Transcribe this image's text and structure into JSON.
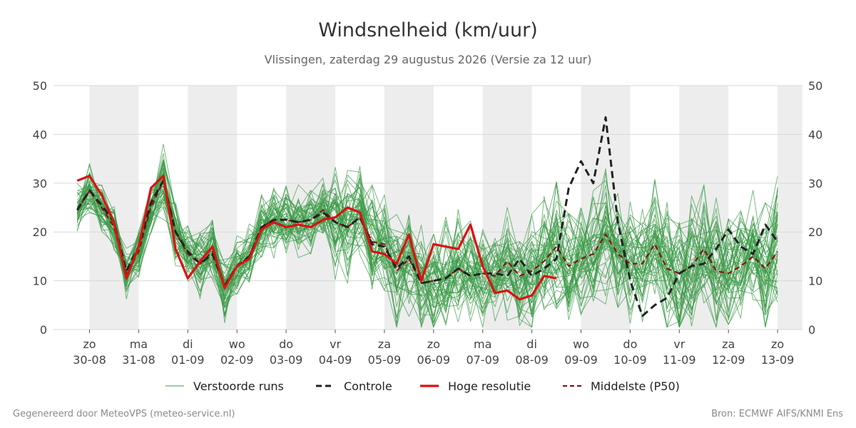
{
  "chart_data": {
    "type": "line",
    "title": "Windsnelheid (km/uur)",
    "subtitle": "Vlissingen, zaterdag 29 augustus 2026 (Versie za 12 uur)",
    "ylim": [
      0,
      50
    ],
    "yticks": [
      0,
      10,
      20,
      30,
      40,
      50
    ],
    "xlim": [
      -0.25,
      14.0
    ],
    "grid": true,
    "legend_position": "bottom",
    "weekend_shading": true,
    "x_ticks": [
      {
        "x": 0,
        "day": "zo",
        "date": "30-08"
      },
      {
        "x": 1,
        "day": "ma",
        "date": "31-08"
      },
      {
        "x": 2,
        "day": "di",
        "date": "01-09"
      },
      {
        "x": 3,
        "day": "wo",
        "date": "02-09"
      },
      {
        "x": 4,
        "day": "do",
        "date": "03-09"
      },
      {
        "x": 5,
        "day": "vr",
        "date": "04-09"
      },
      {
        "x": 6,
        "day": "za",
        "date": "05-09"
      },
      {
        "x": 7,
        "day": "zo",
        "date": "06-09"
      },
      {
        "x": 8,
        "day": "ma",
        "date": "07-09"
      },
      {
        "x": 9,
        "day": "di",
        "date": "08-09"
      },
      {
        "x": 10,
        "day": "wo",
        "date": "09-09"
      },
      {
        "x": 11,
        "day": "do",
        "date": "10-09"
      },
      {
        "x": 12,
        "day": "vr",
        "date": "11-09"
      },
      {
        "x": 13,
        "day": "za",
        "date": "12-09"
      },
      {
        "x": 14,
        "day": "zo",
        "date": "13-09"
      }
    ],
    "shaded_bands": [
      [
        0,
        1
      ],
      [
        2,
        3
      ],
      [
        4,
        5
      ],
      [
        6,
        7
      ],
      [
        8,
        9
      ],
      [
        10,
        11
      ],
      [
        12,
        13
      ],
      [
        14,
        14.5
      ]
    ],
    "series": [
      {
        "name": "Verstoorde runs",
        "color": "#3a9a45",
        "style": "thin",
        "values_note": "ensemble of 50 perturbed members, spread around the median"
      },
      {
        "name": "Controle",
        "color": "#222222",
        "style": "dashed",
        "x": [
          -0.25,
          0,
          0.25,
          0.5,
          0.75,
          1,
          1.25,
          1.5,
          1.75,
          2,
          2.25,
          2.5,
          2.75,
          3,
          3.25,
          3.5,
          3.75,
          4,
          4.25,
          4.5,
          4.75,
          5,
          5.25,
          5.5,
          5.75,
          6,
          6.25,
          6.5,
          6.75,
          7,
          7.25,
          7.5,
          7.75,
          8,
          8.25,
          8.5,
          8.75,
          9,
          9.25,
          9.5,
          9.75,
          10,
          10.25,
          10.5,
          10.75,
          11,
          11.25,
          11.5,
          11.75,
          12,
          12.25,
          12.5,
          12.75,
          13,
          13.25,
          13.5,
          13.75,
          14
        ],
        "values": [
          24.5,
          28.5,
          25.5,
          22,
          12,
          17,
          26,
          30.5,
          20,
          16,
          13.5,
          15.5,
          9,
          13,
          15,
          21,
          22.5,
          22.5,
          22,
          22.5,
          24,
          22,
          21,
          23,
          17.5,
          17,
          12.5,
          15,
          9.5,
          10,
          10.5,
          12.5,
          11,
          11.5,
          11.5,
          11,
          14.5,
          11,
          12.5,
          14.5,
          29,
          34.5,
          30,
          43.5,
          22,
          10,
          2.8,
          5,
          6.5,
          11.5,
          13,
          13.5,
          16.5,
          20.5,
          17,
          15.5,
          21.5,
          18
        ]
      },
      {
        "name": "Hoge resolutie",
        "color": "#dd1111",
        "style": "thick",
        "x": [
          -0.25,
          0,
          0.25,
          0.5,
          0.75,
          1,
          1.25,
          1.5,
          1.75,
          2,
          2.25,
          2.5,
          2.75,
          3,
          3.25,
          3.5,
          3.75,
          4,
          4.25,
          4.5,
          4.75,
          5,
          5.25,
          5.5,
          5.75,
          6,
          6.25,
          6.5,
          6.75,
          7,
          7.25,
          7.5,
          7.75,
          8,
          8.25,
          8.5,
          8.75,
          9,
          9.25,
          9.5
        ],
        "values": [
          30.5,
          31.5,
          27.5,
          22,
          10.5,
          17,
          29,
          31.5,
          16.5,
          10.5,
          14,
          17,
          8.5,
          13,
          14.5,
          20.5,
          22,
          21,
          21.5,
          21,
          22.5,
          23,
          25,
          24,
          16,
          15.5,
          13.5,
          19.5,
          10,
          17.5,
          17,
          16.5,
          21.5,
          13,
          7.5,
          8,
          6.2,
          7,
          11,
          10.5
        ]
      },
      {
        "name": "Middelste (P50)",
        "color": "#8b1010",
        "style": "dashed",
        "x": [
          -0.25,
          0,
          0.25,
          0.5,
          0.75,
          1,
          1.25,
          1.5,
          1.75,
          2,
          2.25,
          2.5,
          2.75,
          3,
          3.25,
          3.5,
          3.75,
          4,
          4.25,
          4.5,
          4.75,
          5,
          5.25,
          5.5,
          5.75,
          6,
          6.25,
          6.5,
          6.75,
          7,
          7.25,
          7.5,
          7.75,
          8,
          8.25,
          8.5,
          8.75,
          9,
          9.25,
          9.5,
          9.75,
          10,
          10.25,
          10.5,
          10.75,
          11,
          11.25,
          11.5,
          11.75,
          12,
          12.25,
          12.5,
          12.75,
          13,
          13.25,
          13.5,
          13.75,
          14
        ],
        "values": [
          24.5,
          28.5,
          25,
          21,
          11.5,
          16,
          25,
          30.5,
          20,
          15.5,
          13.5,
          16,
          9,
          13,
          15,
          21,
          22.5,
          22.5,
          22,
          22.5,
          24.5,
          22,
          21,
          23,
          18,
          17.5,
          12,
          14.5,
          9.5,
          10,
          10.5,
          12.5,
          11,
          11.5,
          11,
          14,
          11,
          12,
          14,
          17,
          13,
          14.5,
          15.5,
          19.5,
          15.5,
          13.5,
          13.5,
          17.5,
          12.5,
          11.5,
          13,
          16.5,
          12,
          11.5,
          13,
          15,
          12.5,
          16
        ]
      }
    ]
  },
  "legend": [
    {
      "label": "Verstoorde runs",
      "color": "#3a9a45",
      "style": "thin"
    },
    {
      "label": "Controle",
      "color": "#222222",
      "style": "dashed"
    },
    {
      "label": "Hoge resolutie",
      "color": "#dd1111",
      "style": "thick"
    },
    {
      "label": "Middelste (P50)",
      "color": "#8b1010",
      "style": "dashed"
    }
  ],
  "footer": {
    "left": "Gegenereerd door MeteoVPS (meteo-service.nl)",
    "right": "Bron: ECMWF AIFS/KNMI Ens"
  },
  "colors": {
    "shade": "#ededed",
    "grid": "#d8d8d8",
    "ensemble": "#3a9a45"
  }
}
